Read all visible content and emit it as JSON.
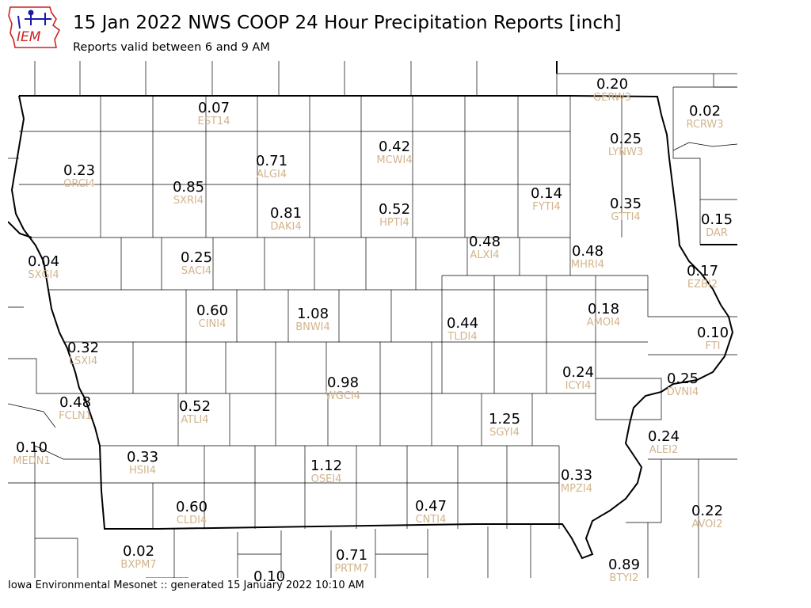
{
  "header": {
    "logo_text": "IEM",
    "title": "15 Jan 2022 NWS COOP 24 Hour Precipitation Reports [inch]",
    "subtitle": "Reports valid between 6 and 9 AM"
  },
  "footer": {
    "text": "Iowa Environmental Mesonet :: generated 15 January 2022 10:10 AM"
  },
  "colors": {
    "value_text": "#000000",
    "station_text": "#d2b48c",
    "county_lines": "#000000",
    "logo_red": "#cc2222",
    "logo_blue": "#1a1aa6"
  },
  "stations": [
    {
      "id": "EST14",
      "value": "0.07"
    },
    {
      "id": "GERW3",
      "value": "0.20"
    },
    {
      "id": "RCRW3",
      "value": "0.02"
    },
    {
      "id": "LYNW3",
      "value": "0.25"
    },
    {
      "id": "ORCI4",
      "value": "0.23"
    },
    {
      "id": "ALGI4",
      "value": "0.71"
    },
    {
      "id": "MCWI4",
      "value": "0.42"
    },
    {
      "id": "SXRI4",
      "value": "0.85"
    },
    {
      "id": "FYTI4",
      "value": "0.14"
    },
    {
      "id": "GTTI4",
      "value": "0.35"
    },
    {
      "id": "DAR",
      "value": "0.15"
    },
    {
      "id": "DAKI4",
      "value": "0.81"
    },
    {
      "id": "HPTI4",
      "value": "0.52"
    },
    {
      "id": "ALXI4",
      "value": "0.48"
    },
    {
      "id": "MHRI4",
      "value": "0.48"
    },
    {
      "id": "SXGI4",
      "value": "0.04"
    },
    {
      "id": "SACI4",
      "value": "0.25"
    },
    {
      "id": "EZBI2",
      "value": "0.17"
    },
    {
      "id": "CINI4",
      "value": "0.60"
    },
    {
      "id": "BNWI4",
      "value": "1.08"
    },
    {
      "id": "AMOI4",
      "value": "0.18"
    },
    {
      "id": "TLDI4",
      "value": "0.44"
    },
    {
      "id": "FTI",
      "value": "0.10"
    },
    {
      "id": "LSXI4",
      "value": "0.32"
    },
    {
      "id": "ICYI4",
      "value": "0.24"
    },
    {
      "id": "WGCI4",
      "value": "0.98"
    },
    {
      "id": "DVNI4",
      "value": "0.25"
    },
    {
      "id": "FCLN1",
      "value": "0.48"
    },
    {
      "id": "ATLI4",
      "value": "0.52"
    },
    {
      "id": "SGYI4",
      "value": "1.25"
    },
    {
      "id": "ALEI2",
      "value": "0.24"
    },
    {
      "id": "MEDN1",
      "value": "0.10"
    },
    {
      "id": "HSII4",
      "value": "0.33"
    },
    {
      "id": "OSEI4",
      "value": "1.12"
    },
    {
      "id": "MPZI4",
      "value": "0.33"
    },
    {
      "id": "CLDI4",
      "value": "0.60"
    },
    {
      "id": "CNTI4",
      "value": "0.47"
    },
    {
      "id": "AVOI2",
      "value": "0.22"
    },
    {
      "id": "BXPM7",
      "value": "0.02"
    },
    {
      "id": "PRTM7",
      "value": "0.71"
    },
    {
      "id": "BTYI2",
      "value": "0.89"
    },
    {
      "id": "",
      "value": "0.10"
    }
  ]
}
